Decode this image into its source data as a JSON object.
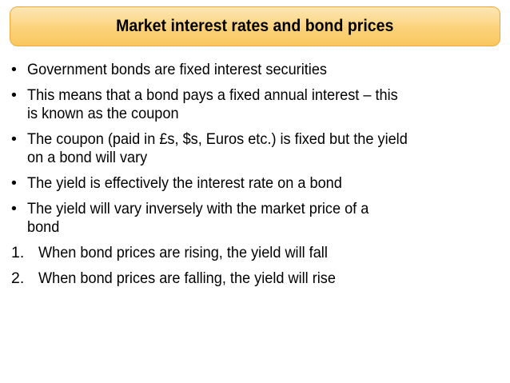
{
  "slide": {
    "title": "Market interest rates and bond prices",
    "items": [
      {
        "marker": "•",
        "lines": [
          "Government bonds are fixed interest securities"
        ]
      },
      {
        "marker": "•",
        "lines": [
          "This means that a bond pays a fixed annual interest – this",
          "is known as the coupon"
        ]
      },
      {
        "marker": "•",
        "lines": [
          "The coupon (paid in £s, $s, Euros etc.) is fixed but the yield",
          "on a bond will vary"
        ]
      },
      {
        "marker": "•",
        "lines": [
          "The yield is effectively the interest rate on a bond"
        ]
      },
      {
        "marker": "•",
        "lines": [
          "The yield will vary inversely with the market price of a",
          "bond"
        ]
      },
      {
        "marker": "1.",
        "lines": [
          "When bond prices are rising, the yield will fall"
        ]
      },
      {
        "marker": "2.",
        "lines": [
          "When bond prices are falling, the yield will rise"
        ]
      }
    ]
  },
  "colors": {
    "title_fill_top": "#fde7b5",
    "title_fill_bottom": "#f9c75e",
    "title_border": "#f2a93b"
  }
}
